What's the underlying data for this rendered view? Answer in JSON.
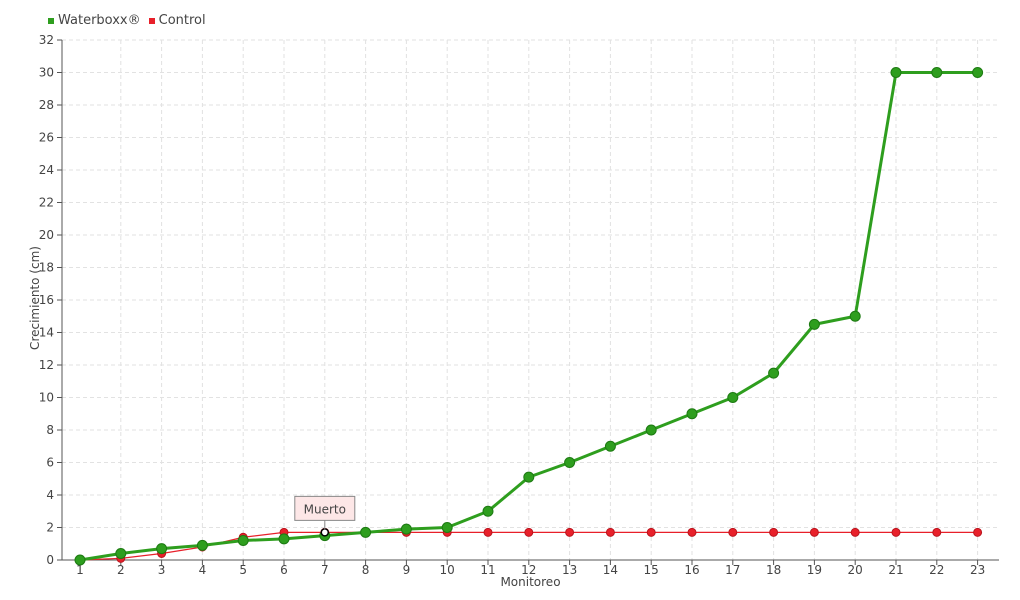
{
  "chart_data": {
    "type": "line",
    "title": "",
    "xlabel": "Monitoreo",
    "ylabel": "Crecimiento (cm)",
    "ylim": [
      0,
      32
    ],
    "yticks": [
      0,
      2,
      4,
      6,
      8,
      10,
      12,
      14,
      16,
      18,
      20,
      22,
      24,
      26,
      28,
      30,
      32
    ],
    "categories": [
      "1",
      "2",
      "3",
      "4",
      "5",
      "6",
      "7",
      "8",
      "9",
      "10",
      "11",
      "12",
      "13",
      "14",
      "15",
      "16",
      "17",
      "18",
      "19",
      "20",
      "21",
      "22",
      "23"
    ],
    "grid": true,
    "legend_position": "top-left",
    "series": [
      {
        "name": "Waterboxx®",
        "color": "#2e9e1e",
        "values": [
          0,
          0.4,
          0.7,
          0.9,
          1.2,
          1.3,
          1.5,
          1.7,
          1.9,
          2.0,
          3.0,
          5.1,
          6.0,
          7.0,
          8.0,
          9.0,
          10.0,
          11.5,
          14.5,
          15.0,
          30.0,
          30.0,
          30.0
        ]
      },
      {
        "name": "Control",
        "color": "#e8202a",
        "values": [
          0,
          0.1,
          0.4,
          0.8,
          1.4,
          1.7,
          1.7,
          1.7,
          1.7,
          1.7,
          1.7,
          1.7,
          1.7,
          1.7,
          1.7,
          1.7,
          1.7,
          1.7,
          1.7,
          1.7,
          1.7,
          1.7,
          1.7
        ]
      }
    ],
    "annotations": [
      {
        "text": "Muerto",
        "category": "7",
        "value": 1.7
      }
    ]
  }
}
